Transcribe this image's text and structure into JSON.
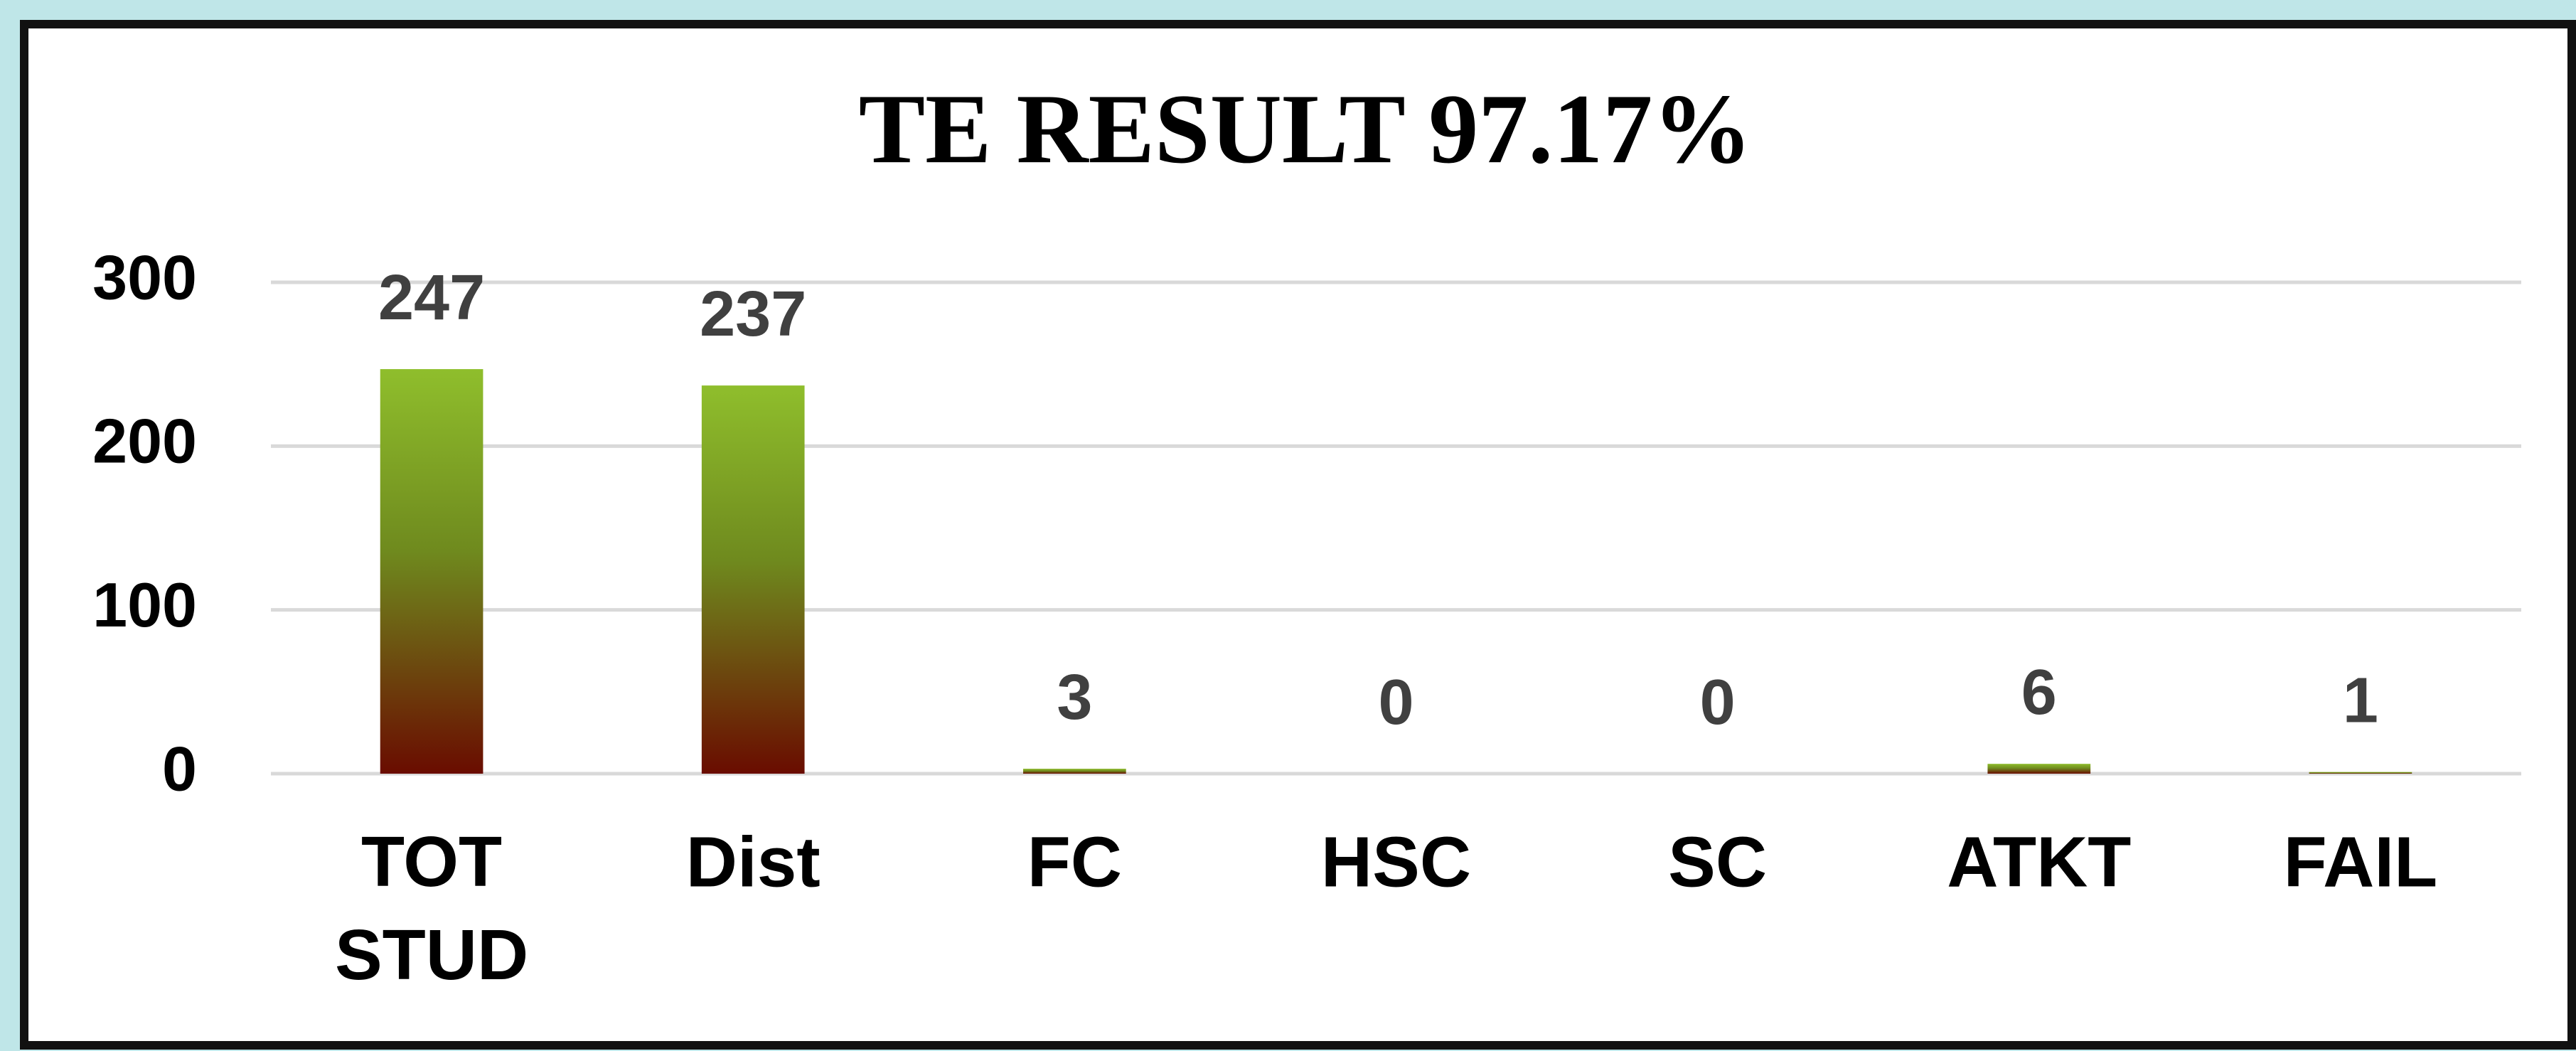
{
  "chart_data": {
    "type": "bar",
    "title": "TE RESULT 97.17%",
    "categories": [
      "TOT STUD",
      "Dist",
      "FC",
      "HSC",
      "SC",
      "ATKT",
      "FAIL"
    ],
    "values": [
      247,
      237,
      3,
      0,
      0,
      6,
      1
    ],
    "color": "#8fbe2c",
    "ylim": [
      0,
      300
    ],
    "yticks": [
      0,
      100,
      200,
      300
    ],
    "grid": true
  }
}
